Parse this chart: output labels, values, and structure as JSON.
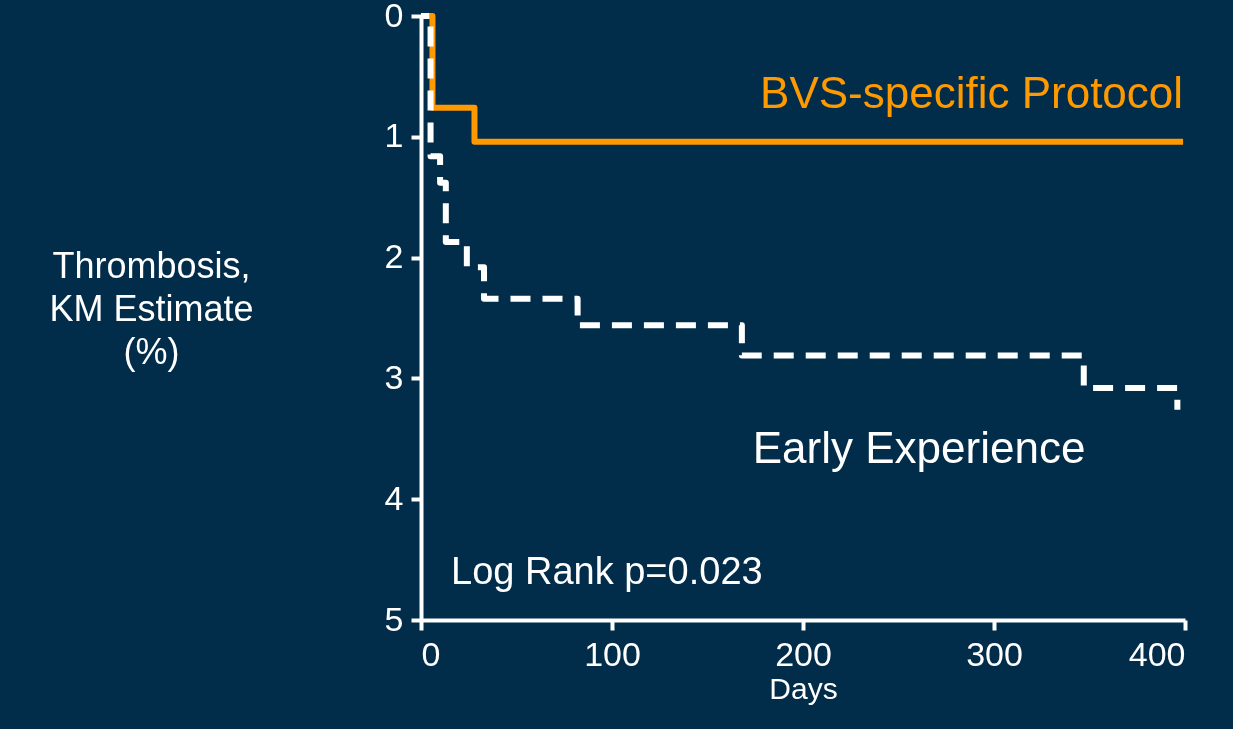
{
  "chart_data": {
    "type": "step",
    "xlabel": "Days",
    "ylabel": "Thrombosis, KM Estimate (%)",
    "xlim": [
      0,
      400
    ],
    "xticks": [
      0,
      100,
      200,
      300,
      400
    ],
    "ylim": [
      5,
      0
    ],
    "yticks": [
      0,
      1,
      2,
      3,
      4,
      5
    ],
    "annotations": [
      "Log Rank p=0.023"
    ],
    "series": [
      {
        "name": "BVS-specific Protocol",
        "color": "#ff9900",
        "line_style": "solid",
        "x": [
          0,
          6,
          28,
          399
        ],
        "values": [
          0,
          0.76,
          1.04,
          1.04
        ]
      },
      {
        "name": "Early Experience",
        "color": "#ffffff",
        "line_style": "dashed",
        "x": [
          0,
          5,
          10,
          13,
          24,
          33,
          82,
          168,
          347,
          396
        ],
        "values": [
          0,
          1.16,
          1.38,
          1.87,
          2.08,
          2.34,
          2.56,
          2.81,
          3.08,
          3.26
        ]
      }
    ]
  }
}
